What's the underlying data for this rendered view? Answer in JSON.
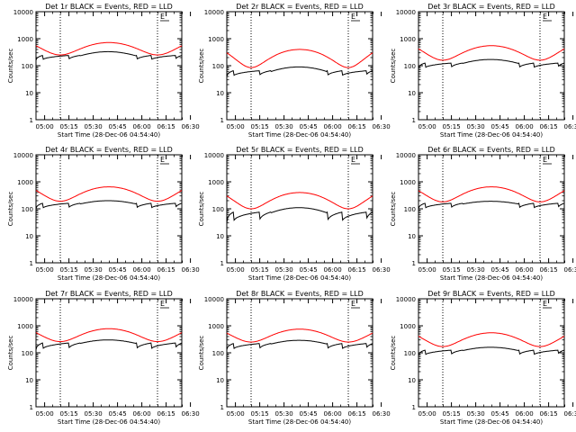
{
  "colors": {
    "background": "#ffffff",
    "axes": "#000000",
    "events": "#000000",
    "lld": "#ff0000"
  },
  "x_ticks": [
    "05:00",
    "05:15",
    "05:30",
    "05:45",
    "06:00",
    "06:15",
    "06:30"
  ],
  "x_label": "Start Time (28-Dec-06 04:54:40)",
  "y_label": "Counts/sec",
  "marker": "E",
  "chart_data": [
    {
      "type": "line",
      "title": "Det 1r BLACK = Events, RED = LLD",
      "ylog": true,
      "ylim": [
        1,
        10000
      ],
      "yticks": [
        "1",
        "10",
        "100",
        "1000",
        "10000"
      ],
      "xlim": [
        0,
        90
      ],
      "vlines": [
        15,
        75
      ],
      "series": [
        {
          "name": "Events",
          "color": "#000000",
          "base": 230,
          "peak": 330,
          "segLow": 160,
          "segHigh": 240
        },
        {
          "name": "LLD",
          "color": "#ff0000",
          "base": 250,
          "peak": 720,
          "edge": 550
        }
      ]
    },
    {
      "type": "line",
      "title": "Det 2r BLACK = Events, RED = LLD",
      "ylog": true,
      "ylim": [
        1,
        10000
      ],
      "yticks": [
        "1",
        "10",
        "100",
        "1000",
        "10000"
      ],
      "xlim": [
        0,
        90
      ],
      "vlines": [
        15,
        75
      ],
      "series": [
        {
          "name": "Events",
          "color": "#000000",
          "base": 60,
          "peak": 90,
          "segLow": 40,
          "segHigh": 65
        },
        {
          "name": "LLD",
          "color": "#ff0000",
          "base": 85,
          "peak": 400,
          "edge": 300
        }
      ]
    },
    {
      "type": "line",
      "title": "Det 3r BLACK = Events, RED = LLD",
      "ylog": true,
      "ylim": [
        1,
        10000
      ],
      "yticks": [
        "1",
        "10",
        "100",
        "1000",
        "10000"
      ],
      "xlim": [
        0,
        90
      ],
      "vlines": [
        15,
        75
      ],
      "series": [
        {
          "name": "Events",
          "color": "#000000",
          "base": 120,
          "peak": 170,
          "segLow": 80,
          "segHigh": 125
        },
        {
          "name": "LLD",
          "color": "#ff0000",
          "base": 160,
          "peak": 550,
          "edge": 420
        }
      ]
    },
    {
      "type": "line",
      "title": "Det 4r BLACK = Events, RED = LLD",
      "ylog": true,
      "ylim": [
        1,
        10000
      ],
      "yticks": [
        "1",
        "10",
        "100",
        "1000",
        "10000"
      ],
      "xlim": [
        0,
        90
      ],
      "vlines": [
        15,
        75
      ],
      "series": [
        {
          "name": "Events",
          "color": "#000000",
          "base": 150,
          "peak": 200,
          "segLow": 100,
          "segHigh": 160
        },
        {
          "name": "LLD",
          "color": "#ff0000",
          "base": 190,
          "peak": 650,
          "edge": 480
        }
      ]
    },
    {
      "type": "line",
      "title": "Det 5r BLACK = Events, RED = LLD",
      "ylog": true,
      "ylim": [
        1,
        10000
      ],
      "yticks": [
        "1",
        "10",
        "100",
        "1000",
        "10000"
      ],
      "xlim": [
        0,
        90
      ],
      "vlines": [
        15,
        75
      ],
      "series": [
        {
          "name": "Events",
          "color": "#000000",
          "base": 70,
          "peak": 110,
          "segLow": 30,
          "segHigh": 75
        },
        {
          "name": "LLD",
          "color": "#ff0000",
          "base": 100,
          "peak": 400,
          "edge": 300
        }
      ]
    },
    {
      "type": "line",
      "title": "Det 6r BLACK = Events, RED = LLD",
      "ylog": true,
      "ylim": [
        1,
        10000
      ],
      "yticks": [
        "1",
        "10",
        "100",
        "1000",
        "10000"
      ],
      "xlim": [
        0,
        90
      ],
      "vlines": [
        15,
        75
      ],
      "series": [
        {
          "name": "Events",
          "color": "#000000",
          "base": 150,
          "peak": 190,
          "segLow": 100,
          "segHigh": 160
        },
        {
          "name": "LLD",
          "color": "#ff0000",
          "base": 180,
          "peak": 650,
          "edge": 470
        }
      ]
    },
    {
      "type": "line",
      "title": "Det 7r BLACK = Events, RED = LLD",
      "ylog": true,
      "ylim": [
        1,
        10000
      ],
      "yticks": [
        "1",
        "10",
        "100",
        "1000",
        "10000"
      ],
      "xlim": [
        0,
        90
      ],
      "vlines": [
        15,
        75
      ],
      "series": [
        {
          "name": "Events",
          "color": "#000000",
          "base": 220,
          "peak": 300,
          "segLow": 130,
          "segHigh": 230
        },
        {
          "name": "LLD",
          "color": "#ff0000",
          "base": 260,
          "peak": 780,
          "edge": 560
        }
      ]
    },
    {
      "type": "line",
      "title": "Det 8r BLACK = Events, RED = LLD",
      "ylog": true,
      "ylim": [
        1,
        10000
      ],
      "yticks": [
        "1",
        "10",
        "100",
        "1000",
        "10000"
      ],
      "xlim": [
        0,
        90
      ],
      "vlines": [
        15,
        75
      ],
      "series": [
        {
          "name": "Events",
          "color": "#000000",
          "base": 210,
          "peak": 290,
          "segLow": 130,
          "segHigh": 220
        },
        {
          "name": "LLD",
          "color": "#ff0000",
          "base": 250,
          "peak": 750,
          "edge": 540
        }
      ]
    },
    {
      "type": "line",
      "title": "Det 9r BLACK = Events, RED = LLD",
      "ylog": true,
      "ylim": [
        1,
        10000
      ],
      "yticks": [
        "1",
        "10",
        "100",
        "1000",
        "10000"
      ],
      "xlim": [
        0,
        90
      ],
      "vlines": [
        15,
        75
      ],
      "series": [
        {
          "name": "Events",
          "color": "#000000",
          "base": 120,
          "peak": 160,
          "segLow": 80,
          "segHigh": 125
        },
        {
          "name": "LLD",
          "color": "#ff0000",
          "base": 170,
          "peak": 550,
          "edge": 410
        }
      ]
    }
  ]
}
